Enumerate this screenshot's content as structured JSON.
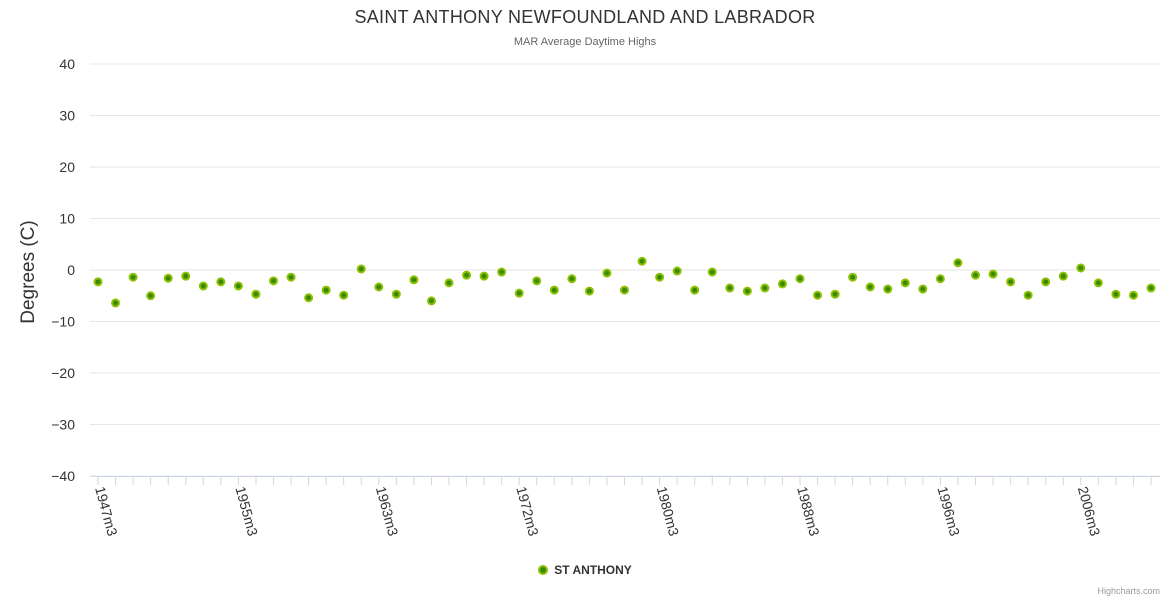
{
  "chart_data": {
    "type": "scatter",
    "title": "SAINT ANTHONY NEWFOUNDLAND AND LABRADOR",
    "subtitle": "MAR Average Daytime Highs",
    "ylabel": "Degrees (C)",
    "xlabel": "",
    "ylim": [
      -40,
      40
    ],
    "y_ticks": [
      40,
      30,
      20,
      10,
      0,
      -10,
      -20,
      -30,
      -40
    ],
    "x_tick_labels": [
      "1947m3",
      "1955m3",
      "1963m3",
      "1972m3",
      "1980m3",
      "1988m3",
      "1996m3",
      "2006m3"
    ],
    "x_tick_every": 8,
    "grid": true,
    "legend_position": "bottom-center",
    "series": [
      {
        "name": "ST ANTHONY",
        "color": "#8cc000",
        "values": [
          -2.3,
          -6.4,
          -1.4,
          -5.0,
          -1.6,
          -1.2,
          -3.1,
          -2.3,
          -3.1,
          -4.7,
          -2.1,
          -1.4,
          -5.4,
          -3.9,
          -4.9,
          0.2,
          -3.3,
          -4.7,
          -1.9,
          -6.0,
          -2.5,
          -1.0,
          -1.2,
          -0.4,
          -4.5,
          -2.1,
          -3.9,
          -1.7,
          -4.1,
          -0.6,
          -3.9,
          1.7,
          -1.4,
          -0.2,
          -3.9,
          -0.4,
          -3.5,
          -4.1,
          -3.5,
          -2.7,
          -1.7,
          -4.9,
          -4.7,
          -1.4,
          -3.3,
          -3.7,
          -2.5,
          -3.7,
          -1.7,
          1.4,
          -1.0,
          -0.8,
          -2.3,
          -4.9,
          -2.3,
          -1.2,
          0.4,
          -2.5,
          -4.7,
          -4.9,
          -3.5
        ]
      }
    ]
  },
  "credits": "Highcharts.com"
}
